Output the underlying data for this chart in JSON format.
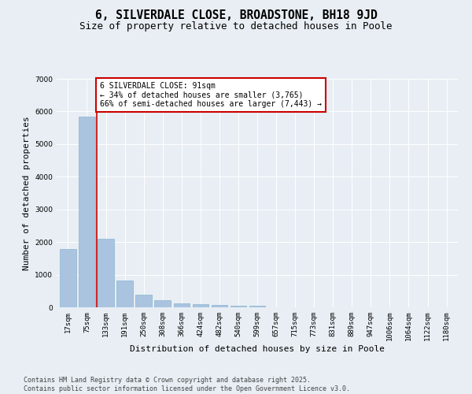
{
  "title": "6, SILVERDALE CLOSE, BROADSTONE, BH18 9JD",
  "subtitle": "Size of property relative to detached houses in Poole",
  "xlabel": "Distribution of detached houses by size in Poole",
  "ylabel": "Number of detached properties",
  "categories": [
    "17sqm",
    "75sqm",
    "133sqm",
    "191sqm",
    "250sqm",
    "308sqm",
    "366sqm",
    "424sqm",
    "482sqm",
    "540sqm",
    "599sqm",
    "657sqm",
    "715sqm",
    "773sqm",
    "831sqm",
    "889sqm",
    "947sqm",
    "1006sqm",
    "1064sqm",
    "1122sqm",
    "1180sqm"
  ],
  "values": [
    1780,
    5850,
    2090,
    820,
    380,
    210,
    115,
    90,
    70,
    55,
    50,
    0,
    0,
    0,
    0,
    0,
    0,
    0,
    0,
    0,
    0
  ],
  "bar_color": "#aac4e0",
  "bar_edge_color": "#8ab4d0",
  "vline_color": "#cc0000",
  "annotation_line1": "6 SILVERDALE CLOSE: 91sqm",
  "annotation_line2": "← 34% of detached houses are smaller (3,765)",
  "annotation_line3": "66% of semi-detached houses are larger (7,443) →",
  "annotation_box_edgecolor": "#cc0000",
  "annotation_fill": "#ffffff",
  "ylim": [
    0,
    7000
  ],
  "yticks": [
    0,
    1000,
    2000,
    3000,
    4000,
    5000,
    6000,
    7000
  ],
  "bg_color": "#e8eef4",
  "footer_text": "Contains HM Land Registry data © Crown copyright and database right 2025.\nContains public sector information licensed under the Open Government Licence v3.0.",
  "title_fontsize": 10.5,
  "subtitle_fontsize": 9,
  "axis_label_fontsize": 8,
  "tick_fontsize": 6.5,
  "annotation_fontsize": 7,
  "footer_fontsize": 6
}
